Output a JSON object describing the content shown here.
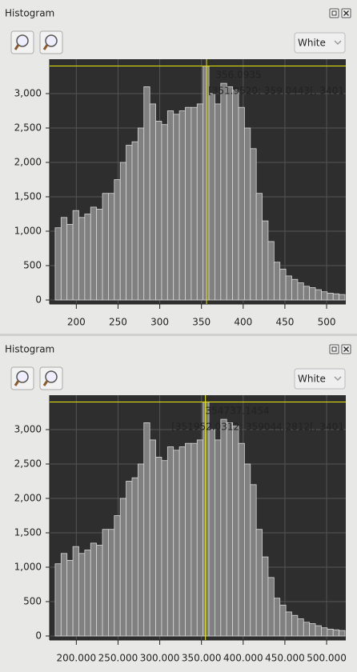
{
  "panels": [
    {
      "title": "Histogram",
      "dropdown": "White"
    },
    {
      "title": "Histogram",
      "dropdown": "White"
    }
  ],
  "chart_data": [
    {
      "type": "histogram",
      "bins": [
        174.64,
        181.73,
        188.82,
        195.91,
        203.0,
        210.09,
        217.18,
        224.27,
        231.36,
        238.45,
        245.54,
        252.63,
        259.72,
        266.81,
        273.9,
        280.99,
        288.08,
        295.17,
        302.26,
        309.35,
        316.44,
        323.53,
        330.62,
        337.71,
        344.8,
        351.89,
        358.98,
        366.07,
        373.16,
        380.25,
        387.34,
        394.43,
        401.52,
        408.61,
        415.7,
        422.79,
        429.88,
        436.97,
        444.06,
        451.15,
        458.24,
        465.33,
        472.42,
        479.51,
        486.6,
        493.69,
        500.78,
        507.87,
        514.96,
        522.05
      ],
      "values": [
        1050,
        1200,
        1100,
        1300,
        1200,
        1250,
        1350,
        1320,
        1550,
        1550,
        1750,
        2000,
        2250,
        2300,
        2500,
        3100,
        2850,
        2600,
        2550,
        2750,
        2700,
        2750,
        2800,
        2800,
        2850,
        3401,
        3000,
        2850,
        3150,
        3100,
        3050,
        2800,
        2500,
        2200,
        1550,
        1150,
        850,
        550,
        450,
        350,
        300,
        250,
        200,
        180,
        150,
        120,
        100,
        90,
        80
      ],
      "color": "#808080",
      "grid": true,
      "xlim": [
        168,
        523
      ],
      "xticks": [
        200,
        250,
        300,
        350,
        400,
        450,
        500
      ],
      "ylim": [
        -58,
        3500
      ],
      "yticks": [
        0,
        500,
        {
          "value": 1000,
          "label": "1,000"
        },
        {
          "value": 1500,
          "label": "1,500"
        },
        {
          "value": 2000,
          "label": "2,000"
        },
        {
          "value": 2500,
          "label": "2,500"
        },
        {
          "value": 3000,
          "label": "3,000"
        }
      ],
      "cursor": 356.0935,
      "cursor_range": "[351.9520; 359.0443[, 3401"
    },
    {
      "type": "histogram",
      "bins": [
        174640,
        181730,
        188820,
        195910,
        203000,
        210090,
        217180,
        224270,
        231360,
        238450,
        245540,
        252630,
        259720,
        266810,
        273900,
        280990,
        288080,
        295170,
        302260,
        309350,
        316440,
        323530,
        330620,
        337710,
        344800,
        351890,
        358980,
        366070,
        373160,
        380250,
        387340,
        394430,
        401520,
        408610,
        415700,
        422790,
        429880,
        436970,
        444060,
        451150,
        458240,
        465330,
        472420,
        479510,
        486600,
        493690,
        500780,
        507870,
        514960,
        522050
      ],
      "values": [
        1050,
        1200,
        1100,
        1300,
        1200,
        1250,
        1350,
        1320,
        1550,
        1550,
        1750,
        2000,
        2250,
        2300,
        2500,
        3100,
        2850,
        2600,
        2550,
        2750,
        2700,
        2750,
        2800,
        2800,
        2850,
        3401,
        3000,
        2850,
        3150,
        3100,
        3050,
        2800,
        2500,
        2200,
        1550,
        1150,
        850,
        550,
        450,
        350,
        300,
        250,
        200,
        180,
        150,
        120,
        100,
        90,
        80
      ],
      "color": "#808080",
      "grid": true,
      "xlim": [
        168000,
        523000
      ],
      "xticks": [
        {
          "value": 200000,
          "label": "200.000"
        },
        {
          "value": 250000,
          "label": "250.000"
        },
        {
          "value": 300000,
          "label": "300.000"
        },
        {
          "value": 350000,
          "label": "350.000"
        },
        {
          "value": 400000,
          "label": "400.000"
        },
        {
          "value": 450000,
          "label": "450.000"
        },
        {
          "value": 500000,
          "label": "500.000"
        }
      ],
      "ylim": [
        -58,
        3500
      ],
      "yticks": [
        0,
        500,
        {
          "value": 1000,
          "label": "1,000"
        },
        {
          "value": 1500,
          "label": "1,500"
        },
        {
          "value": 2000,
          "label": "2,000"
        },
        {
          "value": 2500,
          "label": "2,500"
        },
        {
          "value": 3000,
          "label": "3,000"
        }
      ],
      "cursor": 354737.1454,
      "cursor_range": "[351952.0312; 359044.2812[, 3401"
    }
  ]
}
